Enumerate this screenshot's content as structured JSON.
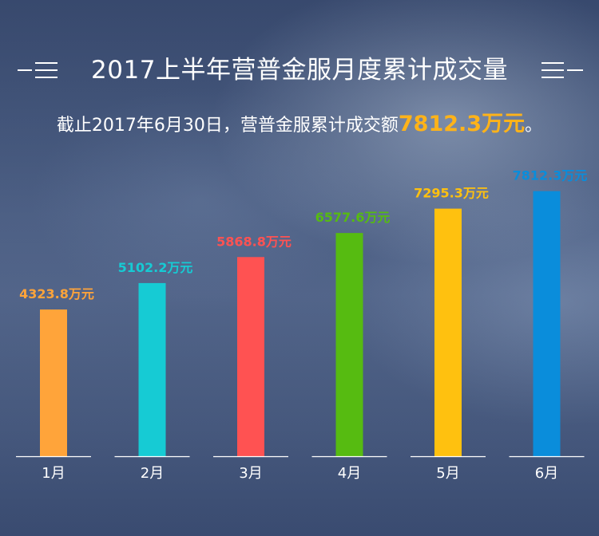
{
  "header": {
    "title": "2017上半年营普金服月度累计成交量",
    "subtitle_prefix": "截止2017年6月30日，营普金服累计成交额",
    "subtitle_highlight": "7812.3万元",
    "subtitle_suffix": "。"
  },
  "colors": {
    "highlight": "#ffb319",
    "bars": [
      "#ffa43a",
      "#16cbd4",
      "#ff5252",
      "#56bb11",
      "#ffc10f",
      "#0a8ddb"
    ],
    "axis": "#ffffff"
  },
  "chart_data": {
    "type": "bar",
    "title": "",
    "xlabel": "",
    "ylabel": "",
    "categories": [
      "1月",
      "2月",
      "3月",
      "4月",
      "5月",
      "6月"
    ],
    "values": [
      4323.8,
      5102.2,
      5868.8,
      6577.6,
      7295.3,
      7812.3
    ],
    "value_labels": [
      "4323.8万元",
      "5102.2万元",
      "5868.8万元",
      "6577.6万元",
      "7295.3万元",
      "7812.3万元"
    ],
    "unit": "万元",
    "grid": false,
    "legend": "none"
  }
}
